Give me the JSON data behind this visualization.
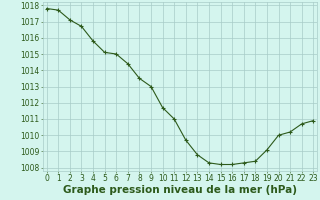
{
  "x": [
    0,
    1,
    2,
    3,
    4,
    5,
    6,
    7,
    8,
    9,
    10,
    11,
    12,
    13,
    14,
    15,
    16,
    17,
    18,
    19,
    20,
    21,
    22,
    23
  ],
  "y": [
    1017.8,
    1017.7,
    1017.1,
    1016.7,
    1015.8,
    1015.1,
    1015.0,
    1014.4,
    1013.5,
    1013.0,
    1011.7,
    1011.0,
    1009.7,
    1008.8,
    1008.3,
    1008.2,
    1008.2,
    1008.3,
    1008.4,
    1009.1,
    1010.0,
    1010.2,
    1010.7,
    1010.9
  ],
  "ylim_min": 1007.8,
  "ylim_max": 1018.2,
  "xlim_min": -0.3,
  "xlim_max": 23.3,
  "yticks": [
    1008,
    1009,
    1010,
    1011,
    1012,
    1013,
    1014,
    1015,
    1016,
    1017,
    1018
  ],
  "xticks": [
    0,
    1,
    2,
    3,
    4,
    5,
    6,
    7,
    8,
    9,
    10,
    11,
    12,
    13,
    14,
    15,
    16,
    17,
    18,
    19,
    20,
    21,
    22,
    23
  ],
  "line_color": "#2d5a1b",
  "marker_color": "#2d5a1b",
  "bg_color": "#d4f5ee",
  "grid_color": "#a8ccc8",
  "xlabel": "Graphe pression niveau de la mer (hPa)",
  "xlabel_color": "#2d5a1b",
  "tick_color": "#2d5a1b",
  "tick_fontsize": 5.5,
  "xlabel_fontsize": 7.5
}
